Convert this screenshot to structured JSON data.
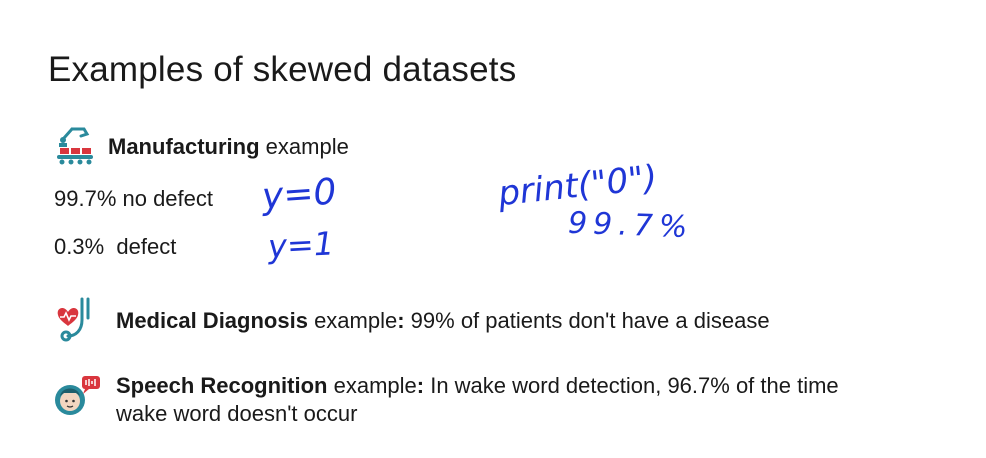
{
  "slide": {
    "title": "Examples of skewed datasets",
    "manufacturing": {
      "heading_bold": "Manufacturing",
      "heading_rest": " example",
      "line1": "99.7% no defect",
      "line2": "0.3%  defect",
      "icon": "robot-arm-conveyor-icon"
    },
    "handwriting": {
      "y0": "y=0",
      "y1": "y=1",
      "print": "print(\"0\")",
      "pct": "99.7%"
    },
    "medical": {
      "bold": "Medical Diagnosis",
      "rest": " example",
      "colon": ":",
      "text": " 99% of patients don't have a disease",
      "icon": "stethoscope-heart-icon"
    },
    "speech": {
      "bold": "Speech Recognition",
      "rest": " example",
      "colon": ":",
      "text1": " In wake word detection, 96.7% of the time",
      "text2": "wake word doesn't occur",
      "icon": "person-speech-icon"
    },
    "colors": {
      "handwriting": "#1f36d6",
      "icon_teal": "#2a8a9c",
      "icon_red": "#d9363e"
    }
  }
}
